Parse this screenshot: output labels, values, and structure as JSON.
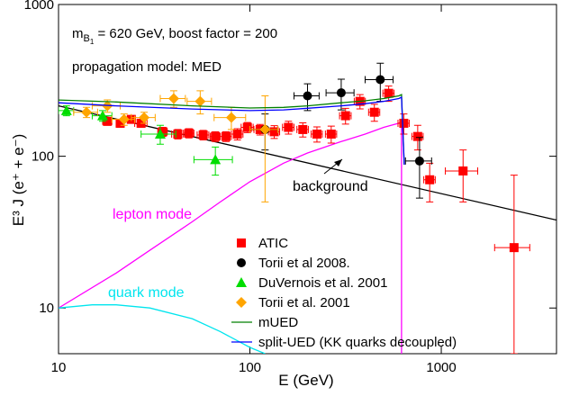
{
  "chart_data": {
    "type": "scatter",
    "xlabel": "E (GeV)",
    "ylabel": "E³ J (e⁺ + e⁻)",
    "xscale": "log",
    "yscale": "log",
    "xlim": [
      10,
      4000
    ],
    "ylim": [
      5,
      1000
    ],
    "xticks": [
      10,
      100,
      1000
    ],
    "yticks": [
      10,
      100,
      1000
    ],
    "legend": "lower right",
    "parameter_label": {
      "m": "m",
      "sub": "B",
      "subsub": "1",
      "rest": " =  620 GeV, boost factor = 200"
    },
    "annotations": [
      "propagation model: MED"
    ],
    "series": [
      {
        "name": "ATIC",
        "kind": "points",
        "marker": "square",
        "color": "#ff0000",
        "x": [
          18,
          21,
          24,
          27,
          35,
          42,
          48,
          57,
          66,
          75,
          86,
          97,
          113,
          134,
          159,
          189,
          224,
          266,
          316,
          376,
          447,
          531,
          637,
          753,
          870,
          1300,
          2400
        ],
        "values": [
          170,
          165,
          175,
          165,
          145,
          140,
          142,
          138,
          135,
          135,
          140,
          155,
          150,
          145,
          155,
          150,
          140,
          140,
          185,
          230,
          195,
          260,
          165,
          135,
          70,
          80,
          25
        ],
        "xerr": [
          1,
          1,
          1,
          2,
          2,
          3,
          3,
          4,
          4,
          5,
          6,
          7,
          8,
          9,
          11,
          13,
          15,
          18,
          22,
          25,
          30,
          36,
          43,
          51,
          60,
          250,
          500
        ],
        "yerr": [
          10,
          10,
          10,
          10,
          10,
          10,
          10,
          10,
          10,
          10,
          12,
          12,
          12,
          14,
          15,
          16,
          16,
          18,
          22,
          25,
          25,
          30,
          25,
          25,
          20,
          30,
          50
        ]
      },
      {
        "name": "Torii et al 2008.",
        "kind": "points",
        "marker": "circle",
        "color": "#000000",
        "x": [
          120,
          200,
          300,
          480,
          770
        ],
        "values": [
          150,
          250,
          262,
          320,
          93
        ],
        "xerr": [
          20,
          30,
          50,
          80,
          120
        ],
        "yerr": [
          40,
          50,
          60,
          90,
          40
        ]
      },
      {
        "name": "DuVernois et al. 2001",
        "kind": "points",
        "marker": "triangle",
        "color": "#00dd00",
        "x": [
          11,
          17,
          34,
          66
        ],
        "values": [
          200,
          185,
          140,
          95
        ],
        "xerr": [
          1,
          2,
          7,
          15
        ],
        "yerr": [
          15,
          15,
          20,
          20
        ]
      },
      {
        "name": "Torii et al. 2001",
        "kind": "points",
        "marker": "diamond",
        "color": "#ffa500",
        "x": [
          14,
          18,
          22,
          28,
          40,
          55,
          80,
          120
        ],
        "values": [
          195,
          215,
          175,
          180,
          240,
          230,
          180,
          150
        ],
        "xerr": [
          2,
          3,
          3,
          4,
          6,
          8,
          15,
          20
        ],
        "yerr": [
          15,
          20,
          15,
          15,
          30,
          40,
          30,
          100
        ]
      },
      {
        "name": "mUED",
        "kind": "line",
        "color": "#008000",
        "x": [
          10,
          20,
          50,
          100,
          150,
          200,
          300,
          400,
          500,
          600,
          620,
          640
        ],
        "values": [
          235,
          228,
          215,
          208,
          210,
          215,
          225,
          232,
          240,
          250,
          255,
          88
        ]
      },
      {
        "name": "split-UED (KK quarks decoupled)",
        "kind": "line",
        "color": "#0000ff",
        "x": [
          10,
          20,
          50,
          100,
          150,
          200,
          300,
          400,
          500,
          600,
          620,
          640
        ],
        "values": [
          225,
          215,
          205,
          200,
          202,
          207,
          215,
          222,
          230,
          240,
          245,
          88
        ]
      }
    ],
    "annotated_lines": [
      {
        "name": "background",
        "color": "#000000",
        "x": [
          10,
          4000
        ],
        "values": [
          215,
          38
        ]
      },
      {
        "name": "lepton mode",
        "color": "#ff00ff",
        "x": [
          10,
          20,
          30,
          50,
          70,
          100,
          150,
          200,
          300,
          400,
          500,
          600,
          620,
          620
        ],
        "values": [
          10,
          17,
          24,
          37,
          50,
          68,
          90,
          105,
          125,
          140,
          155,
          165,
          170,
          5
        ]
      },
      {
        "name": "quark mode",
        "color": "#00e5ee",
        "x": [
          10,
          15,
          20,
          30,
          50,
          70,
          100,
          120
        ],
        "values": [
          10,
          10.5,
          10.5,
          10,
          8.5,
          7,
          5.5,
          5
        ]
      }
    ]
  }
}
